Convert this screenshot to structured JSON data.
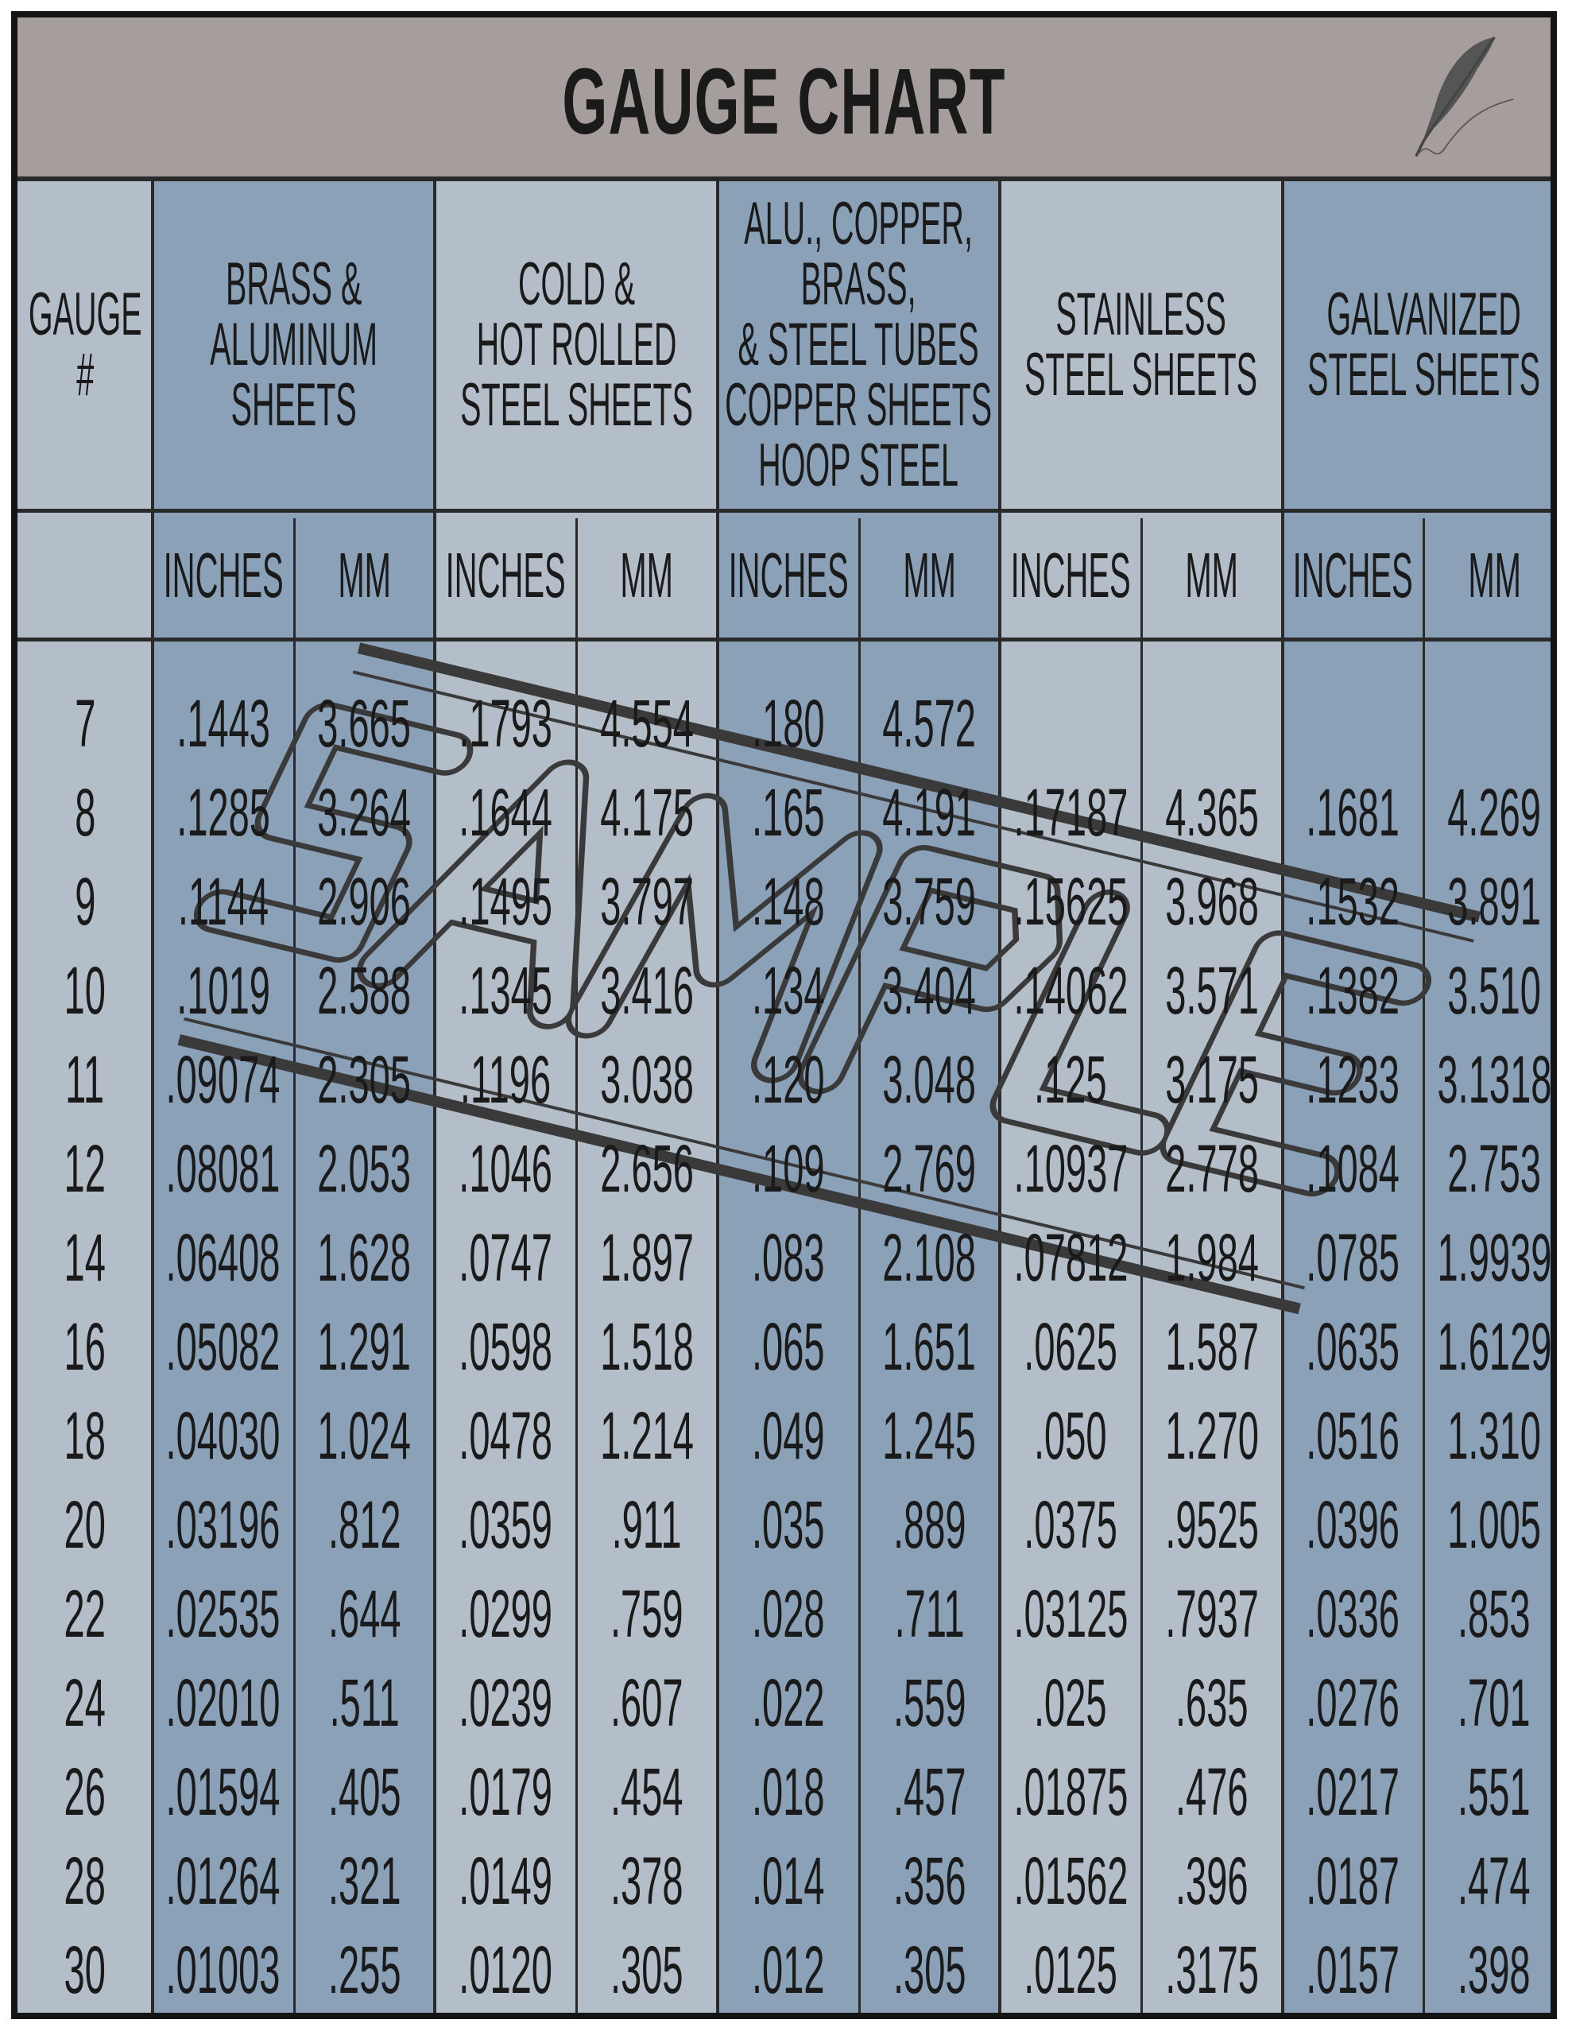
{
  "title": "GAUGE CHART",
  "watermark": "SAMPLE",
  "colors": {
    "title_bar": "#a69e9c",
    "light_column": "#b4bec8",
    "dark_column": "#8ba1b8",
    "stamp": "#3a3a3a"
  },
  "icons": {
    "corner": "feather-quill-icon"
  },
  "gauge_header": "GAUGE\n#",
  "groups": [
    {
      "label": "BRASS &\nALUMINUM\nSHEETS",
      "shade": "dark"
    },
    {
      "label": "COLD &\nHOT ROLLED\nSTEEL SHEETS",
      "shade": "light"
    },
    {
      "label": "ALU., COPPER,\nBRASS,\n& STEEL TUBES\nCOPPER SHEETS\nHOOP STEEL",
      "shade": "dark"
    },
    {
      "label": "STAINLESS\nSTEEL SHEETS",
      "shade": "light"
    },
    {
      "label": "GALVANIZED\nSTEEL SHEETS",
      "shade": "dark"
    }
  ],
  "units": [
    "INCHES",
    "MM"
  ],
  "rows": [
    {
      "gauge": "7",
      "values": [
        ".1443",
        "3.665",
        ".1793",
        "4.554",
        ".180",
        "4.572",
        "",
        "",
        "",
        ""
      ]
    },
    {
      "gauge": "8",
      "values": [
        ".1285",
        "3.264",
        ".1644",
        "4.175",
        ".165",
        "4.191",
        ".17187",
        "4.365",
        ".1681",
        "4.269"
      ]
    },
    {
      "gauge": "9",
      "values": [
        ".1144",
        "2.906",
        ".1495",
        "3.797",
        ".148",
        "3.759",
        ".15625",
        "3.968",
        ".1532",
        "3.891"
      ]
    },
    {
      "gauge": "10",
      "values": [
        ".1019",
        "2.588",
        ".1345",
        "3.416",
        ".134",
        "3.404",
        ".14062",
        "3.571",
        ".1382",
        "3.510"
      ]
    },
    {
      "gauge": "11",
      "values": [
        ".09074",
        "2.305",
        ".1196",
        "3.038",
        ".120",
        "3.048",
        ".125",
        "3.175",
        ".1233",
        "3.1318"
      ]
    },
    {
      "gauge": "12",
      "values": [
        ".08081",
        "2.053",
        ".1046",
        "2.656",
        ".109",
        "2.769",
        ".10937",
        "2.778",
        ".1084",
        "2.753"
      ]
    },
    {
      "gauge": "14",
      "values": [
        ".06408",
        "1.628",
        ".0747",
        "1.897",
        ".083",
        "2.108",
        ".07812",
        "1.984",
        ".0785",
        "1.9939"
      ]
    },
    {
      "gauge": "16",
      "values": [
        ".05082",
        "1.291",
        ".0598",
        "1.518",
        ".065",
        "1.651",
        ".0625",
        "1.587",
        ".0635",
        "1.6129"
      ]
    },
    {
      "gauge": "18",
      "values": [
        ".04030",
        "1.024",
        ".0478",
        "1.214",
        ".049",
        "1.245",
        ".050",
        "1.270",
        ".0516",
        "1.310"
      ]
    },
    {
      "gauge": "20",
      "values": [
        ".03196",
        ".812",
        ".0359",
        ".911",
        ".035",
        ".889",
        ".0375",
        ".9525",
        ".0396",
        "1.005"
      ]
    },
    {
      "gauge": "22",
      "values": [
        ".02535",
        ".644",
        ".0299",
        ".759",
        ".028",
        ".711",
        ".03125",
        ".7937",
        ".0336",
        ".853"
      ]
    },
    {
      "gauge": "24",
      "values": [
        ".02010",
        ".511",
        ".0239",
        ".607",
        ".022",
        ".559",
        ".025",
        ".635",
        ".0276",
        ".701"
      ]
    },
    {
      "gauge": "26",
      "values": [
        ".01594",
        ".405",
        ".0179",
        ".454",
        ".018",
        ".457",
        ".01875",
        ".476",
        ".0217",
        ".551"
      ]
    },
    {
      "gauge": "28",
      "values": [
        ".01264",
        ".321",
        ".0149",
        ".378",
        ".014",
        ".356",
        ".01562",
        ".396",
        ".0187",
        ".474"
      ]
    },
    {
      "gauge": "30",
      "values": [
        ".01003",
        ".255",
        ".0120",
        ".305",
        ".012",
        ".305",
        ".0125",
        ".3175",
        ".0157",
        ".398"
      ]
    }
  ]
}
